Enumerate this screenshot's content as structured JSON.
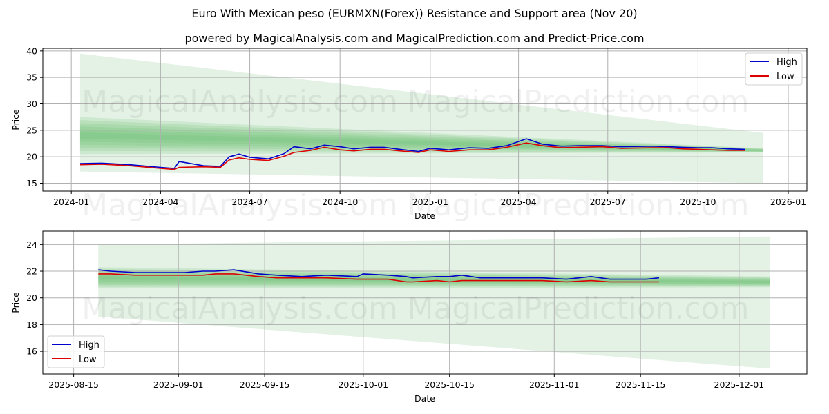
{
  "title": "Euro With Mexican peso (EURMXN(Forex)) Resistance and Support area (Nov 20)",
  "subtitle": "powered by MagicalAnalysis.com and MagicalPrediction.com and Predict-Price.com",
  "watermarks": [
    "MagicalAnalysis.com",
    "MagicalPrediction.com"
  ],
  "colors": {
    "high": "#0000cc",
    "low": "#dd0000",
    "band_light": "#c8e6c9",
    "band_dark": "#66bb6a",
    "grid": "#b0b0b0"
  },
  "chart_data": [
    {
      "type": "line",
      "title": "",
      "xlabel": "Date",
      "ylabel": "Price",
      "ylim": [
        13.5,
        40.5
      ],
      "yticks": [
        15,
        20,
        25,
        30,
        35,
        40
      ],
      "xticks": [
        "2024-01",
        "2024-04",
        "2024-07",
        "2024-10",
        "2025-01",
        "2025-04",
        "2025-07",
        "2025-10",
        "2026-01"
      ],
      "grid": true,
      "legend": {
        "position": "upper right",
        "entries": [
          "High",
          "Low"
        ]
      },
      "x": [
        "2024-01-10",
        "2024-02-01",
        "2024-03-01",
        "2024-04-01",
        "2024-04-15",
        "2024-04-20",
        "2024-05-15",
        "2024-06-01",
        "2024-06-10",
        "2024-06-20",
        "2024-07-01",
        "2024-07-20",
        "2024-08-05",
        "2024-08-15",
        "2024-09-01",
        "2024-09-15",
        "2024-10-01",
        "2024-10-15",
        "2024-11-01",
        "2024-11-15",
        "2024-12-01",
        "2024-12-20",
        "2025-01-01",
        "2025-01-20",
        "2025-02-10",
        "2025-03-01",
        "2025-03-20",
        "2025-04-09",
        "2025-04-25",
        "2025-05-15",
        "2025-06-01",
        "2025-06-25",
        "2025-07-15",
        "2025-08-15",
        "2025-09-01",
        "2025-09-15",
        "2025-10-01",
        "2025-10-15",
        "2025-11-01",
        "2025-11-18"
      ],
      "series": [
        {
          "name": "High",
          "values": [
            18.7,
            18.8,
            18.5,
            18.0,
            17.8,
            19.1,
            18.3,
            18.2,
            20.0,
            20.5,
            19.9,
            19.6,
            20.6,
            21.9,
            21.5,
            22.2,
            21.9,
            21.5,
            21.8,
            21.8,
            21.4,
            21.0,
            21.6,
            21.3,
            21.7,
            21.6,
            22.1,
            23.4,
            22.4,
            22.0,
            22.1,
            22.1,
            21.9,
            22.0,
            21.9,
            21.8,
            21.7,
            21.7,
            21.5,
            21.4
          ]
        },
        {
          "name": "Low",
          "values": [
            18.5,
            18.6,
            18.3,
            17.8,
            17.6,
            18.0,
            18.1,
            18.0,
            19.4,
            19.8,
            19.5,
            19.3,
            20.1,
            20.8,
            21.2,
            21.8,
            21.3,
            21.1,
            21.4,
            21.4,
            21.1,
            20.8,
            21.3,
            21.0,
            21.3,
            21.3,
            21.8,
            22.6,
            22.1,
            21.7,
            21.8,
            21.9,
            21.6,
            21.7,
            21.7,
            21.5,
            21.4,
            21.3,
            21.2,
            21.2
          ]
        }
      ],
      "bands": {
        "outer": {
          "start_date": "2024-01-10",
          "end_date": "2025-12-06",
          "start_low": 17.2,
          "start_high": 39.5,
          "end_low": 15.0,
          "end_high": 24.5
        },
        "inner": {
          "start_low": 20.5,
          "start_high": 27.5,
          "end_low": 20.8,
          "end_high": 21.6
        }
      }
    },
    {
      "type": "line",
      "title": "",
      "xlabel": "Date",
      "ylabel": "Price",
      "ylim": [
        14.3,
        25.0
      ],
      "yticks": [
        16,
        18,
        20,
        22,
        24
      ],
      "xticks": [
        "2025-08-15",
        "2025-09-01",
        "2025-09-15",
        "2025-10-01",
        "2025-10-15",
        "2025-11-01",
        "2025-11-15",
        "2025-12-01"
      ],
      "grid": true,
      "legend": {
        "position": "lower left",
        "entries": [
          "High",
          "Low"
        ]
      },
      "x": [
        "2025-08-19",
        "2025-08-21",
        "2025-08-25",
        "2025-08-29",
        "2025-09-02",
        "2025-09-05",
        "2025-09-07",
        "2025-09-10",
        "2025-09-14",
        "2025-09-17",
        "2025-09-21",
        "2025-09-25",
        "2025-09-30",
        "2025-10-01",
        "2025-10-05",
        "2025-10-08",
        "2025-10-09",
        "2025-10-13",
        "2025-10-15",
        "2025-10-17",
        "2025-10-20",
        "2025-10-25",
        "2025-10-30",
        "2025-11-03",
        "2025-11-07",
        "2025-11-10",
        "2025-11-13",
        "2025-11-16",
        "2025-11-18"
      ],
      "series": [
        {
          "name": "High",
          "values": [
            22.1,
            22.0,
            21.9,
            21.9,
            21.9,
            22.0,
            22.0,
            22.1,
            21.8,
            21.7,
            21.6,
            21.7,
            21.6,
            21.8,
            21.7,
            21.6,
            21.5,
            21.6,
            21.6,
            21.7,
            21.5,
            21.5,
            21.5,
            21.4,
            21.6,
            21.4,
            21.4,
            21.4,
            21.5
          ]
        },
        {
          "name": "Low",
          "values": [
            21.8,
            21.8,
            21.7,
            21.7,
            21.7,
            21.7,
            21.8,
            21.8,
            21.6,
            21.5,
            21.5,
            21.5,
            21.4,
            21.4,
            21.4,
            21.2,
            21.2,
            21.3,
            21.2,
            21.3,
            21.3,
            21.3,
            21.3,
            21.2,
            21.3,
            21.2,
            21.2,
            21.2,
            21.2
          ]
        }
      ],
      "bands": {
        "outer": {
          "start_date": "2025-08-19",
          "end_date": "2025-12-06",
          "start_low": 18.6,
          "start_high": 24.0,
          "end_low": 14.7,
          "end_high": 24.6
        },
        "inner": {
          "start_low": 20.7,
          "start_high": 22.3,
          "end_low": 20.8,
          "end_high": 21.6
        }
      }
    }
  ]
}
